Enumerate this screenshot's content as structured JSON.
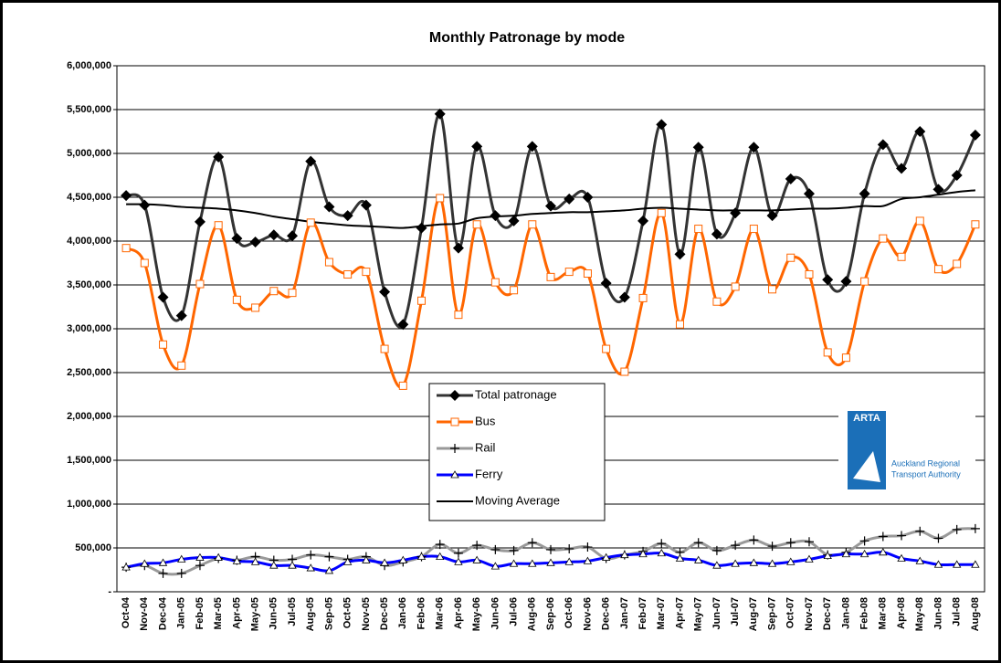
{
  "chart_data": {
    "type": "line",
    "title": "Monthly Patronage by mode",
    "categories": [
      "Oct-04",
      "Nov-04",
      "Dec-04",
      "Jan-05",
      "Feb-05",
      "Mar-05",
      "Apr-05",
      "May-05",
      "Jun-05",
      "Jul-05",
      "Aug-05",
      "Sep-05",
      "Oct-05",
      "Nov-05",
      "Dec-05",
      "Jan-06",
      "Feb-06",
      "Mar-06",
      "Apr-06",
      "May-06",
      "Jun-06",
      "Jul-06",
      "Aug-06",
      "Sep-06",
      "Oct-06",
      "Nov-06",
      "Dec-06",
      "Jan-07",
      "Feb-07",
      "Mar-07",
      "Apr-07",
      "May-07",
      "Jun-07",
      "Jul-07",
      "Aug-07",
      "Sep-07",
      "Oct-07",
      "Nov-07",
      "Dec-07",
      "Jan-08",
      "Feb-08",
      "Mar-08",
      "Apr-08",
      "May-08",
      "Jun-08",
      "Jul-08",
      "Aug-08"
    ],
    "series": [
      {
        "name": "Total patronage",
        "color": "#333333",
        "marker": "diamond",
        "values": [
          4520000,
          4410000,
          3360000,
          3150000,
          4220000,
          4960000,
          4030000,
          3990000,
          4070000,
          4060000,
          4910000,
          4390000,
          4290000,
          4410000,
          3420000,
          3050000,
          4150000,
          5450000,
          3920000,
          5080000,
          4290000,
          4230000,
          5080000,
          4400000,
          4480000,
          4500000,
          3520000,
          3360000,
          4230000,
          5330000,
          3850000,
          5070000,
          4080000,
          4320000,
          5070000,
          4290000,
          4710000,
          4540000,
          3560000,
          3540000,
          4540000,
          5100000,
          4830000,
          5250000,
          4590000,
          4750000,
          5210000
        ]
      },
      {
        "name": "Bus",
        "color": "#ff6600",
        "marker": "square",
        "values": [
          3920000,
          3750000,
          2820000,
          2580000,
          3510000,
          4180000,
          3330000,
          3240000,
          3430000,
          3410000,
          4210000,
          3760000,
          3620000,
          3650000,
          2770000,
          2350000,
          3320000,
          4490000,
          3160000,
          4190000,
          3530000,
          3440000,
          4190000,
          3590000,
          3650000,
          3630000,
          2770000,
          2510000,
          3350000,
          4320000,
          3050000,
          4140000,
          3310000,
          3480000,
          4140000,
          3450000,
          3810000,
          3620000,
          2730000,
          2670000,
          3540000,
          4030000,
          3820000,
          4230000,
          3680000,
          3740000,
          4190000
        ]
      },
      {
        "name": "Rail",
        "color": "#999999",
        "marker": "plus",
        "values": [
          280000,
          300000,
          210000,
          210000,
          300000,
          380000,
          360000,
          400000,
          360000,
          370000,
          420000,
          400000,
          370000,
          400000,
          300000,
          340000,
          400000,
          540000,
          440000,
          530000,
          480000,
          470000,
          560000,
          480000,
          490000,
          510000,
          380000,
          420000,
          460000,
          550000,
          450000,
          560000,
          470000,
          530000,
          590000,
          520000,
          560000,
          570000,
          420000,
          450000,
          580000,
          630000,
          640000,
          690000,
          610000,
          710000,
          720000
        ]
      },
      {
        "name": "Ferry",
        "color": "#0000ff",
        "marker": "triangle",
        "values": [
          280000,
          320000,
          330000,
          370000,
          390000,
          390000,
          350000,
          340000,
          300000,
          300000,
          270000,
          240000,
          340000,
          360000,
          330000,
          360000,
          400000,
          400000,
          340000,
          360000,
          290000,
          320000,
          320000,
          330000,
          340000,
          350000,
          390000,
          420000,
          430000,
          440000,
          380000,
          360000,
          300000,
          320000,
          330000,
          320000,
          340000,
          370000,
          410000,
          430000,
          430000,
          450000,
          380000,
          350000,
          310000,
          310000,
          310000
        ]
      },
      {
        "name": "Moving Average",
        "color": "#000000",
        "marker": "none",
        "values": [
          4420000,
          4420000,
          4410000,
          4390000,
          4380000,
          4370000,
          4350000,
          4320000,
          4280000,
          4250000,
          4220000,
          4200000,
          4180000,
          4170000,
          4160000,
          4150000,
          4170000,
          4190000,
          4200000,
          4260000,
          4280000,
          4290000,
          4310000,
          4320000,
          4330000,
          4330000,
          4340000,
          4350000,
          4370000,
          4380000,
          4370000,
          4360000,
          4350000,
          4350000,
          4350000,
          4350000,
          4360000,
          4370000,
          4370000,
          4380000,
          4400000,
          4400000,
          4480000,
          4500000,
          4530000,
          4560000,
          4580000
        ]
      }
    ],
    "ylim": [
      0,
      6000000
    ],
    "yticks": [
      {
        "value": 0,
        "label": "-"
      },
      {
        "value": 500000,
        "label": "500,000"
      },
      {
        "value": 1000000,
        "label": "1,000,000"
      },
      {
        "value": 1500000,
        "label": "1,500,000"
      },
      {
        "value": 2000000,
        "label": "2,000,000"
      },
      {
        "value": 2500000,
        "label": "2,500,000"
      },
      {
        "value": 3000000,
        "label": "3,000,000"
      },
      {
        "value": 3500000,
        "label": "3,500,000"
      },
      {
        "value": 4000000,
        "label": "4,000,000"
      },
      {
        "value": 4500000,
        "label": "4,500,000"
      },
      {
        "value": 5000000,
        "label": "5,000,000"
      },
      {
        "value": 5500000,
        "label": "5,500,000"
      },
      {
        "value": 6000000,
        "label": "6,000,000"
      }
    ],
    "grid": true,
    "logo": {
      "mark": "ARTA",
      "line1": "Auckland Regional",
      "line2": "Transport Authority"
    }
  }
}
